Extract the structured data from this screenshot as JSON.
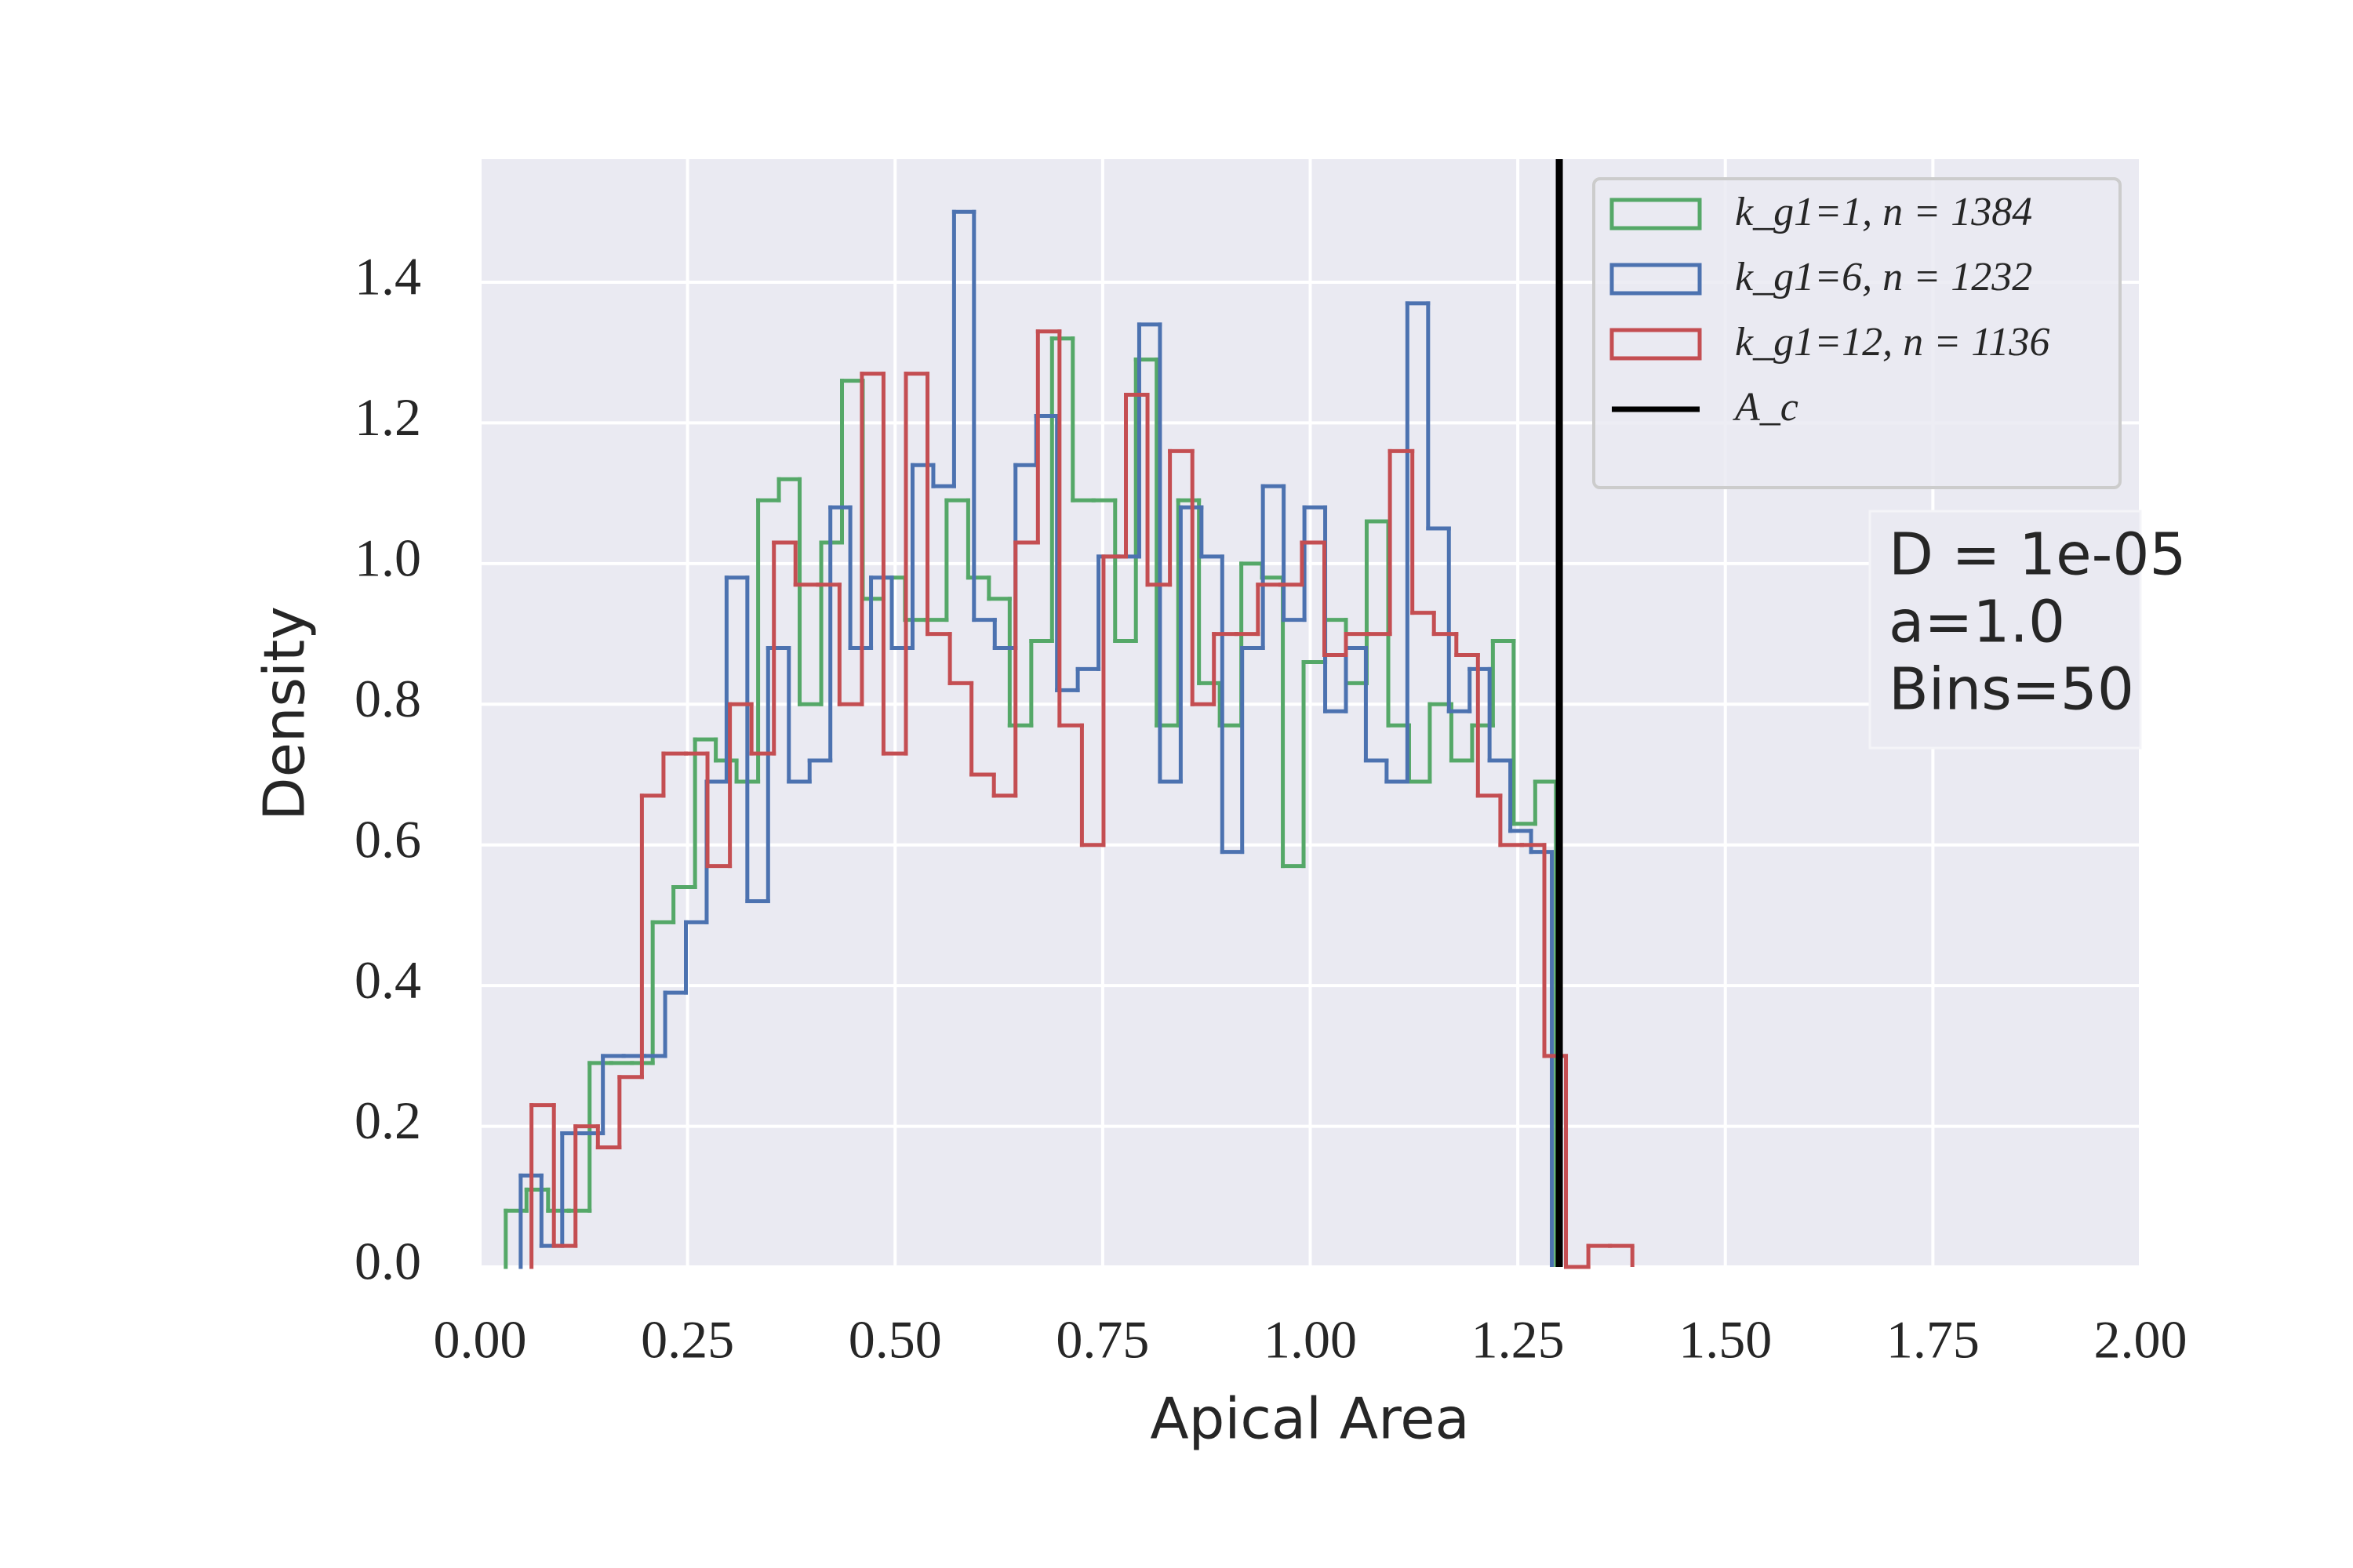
{
  "chart_data": {
    "type": "histogram",
    "histtype": "step",
    "xlabel": "Apical Area",
    "ylabel": "Density",
    "xlim": [
      0,
      2
    ],
    "ylim": [
      0,
      1.575
    ],
    "xticks": [
      {
        "value": 0,
        "label": "0.00"
      },
      0.25,
      {
        "value": 0.5,
        "label": "0.50"
      },
      0.75,
      {
        "value": 1,
        "label": "1.00"
      },
      1.25,
      {
        "value": 1.5,
        "label": "1.50"
      },
      1.75,
      {
        "value": 2,
        "label": "2.00"
      }
    ],
    "yticks": [
      {
        "value": 0,
        "label": "0.0"
      },
      0.2,
      0.4,
      0.6,
      0.8,
      {
        "value": 1,
        "label": "1.0"
      },
      1.2,
      1.4
    ],
    "grid": true,
    "legend_loc": "upper right",
    "series": [
      {
        "name": "k_g1=1, n = 1384",
        "color": "#55a868",
        "bins": [
          0.031,
          0.056,
          0.082,
          0.107,
          0.132,
          0.158,
          0.183,
          0.208,
          0.233,
          0.259,
          0.284,
          0.309,
          0.335,
          0.36,
          0.385,
          0.411,
          0.436,
          0.461,
          0.486,
          0.512,
          0.537,
          0.562,
          0.588,
          0.613,
          0.638,
          0.664,
          0.689,
          0.714,
          0.739,
          0.765,
          0.79,
          0.815,
          0.841,
          0.866,
          0.891,
          0.917,
          0.942,
          0.967,
          0.992,
          1.018,
          1.043,
          1.068,
          1.094,
          1.119,
          1.144,
          1.17,
          1.195,
          1.22,
          1.245,
          1.271,
          1.296
        ],
        "values": [
          0.08,
          0.11,
          0.08,
          0.08,
          0.29,
          0.29,
          0.29,
          0.49,
          0.54,
          0.75,
          0.72,
          0.69,
          1.09,
          1.12,
          0.8,
          1.03,
          1.26,
          0.95,
          0.98,
          0.92,
          0.92,
          1.09,
          0.98,
          0.95,
          0.77,
          0.89,
          1.32,
          1.09,
          1.09,
          0.89,
          1.29,
          0.77,
          1.09,
          0.83,
          0.77,
          1.0,
          0.98,
          0.57,
          0.86,
          0.92,
          0.83,
          1.06,
          0.77,
          0.69,
          0.8,
          0.72,
          0.77,
          0.89,
          0.63,
          0.69
        ]
      },
      {
        "name": "k_g1=6, n = 1232",
        "color": "#4c72b0",
        "bins": [
          0.049,
          0.074,
          0.099,
          0.124,
          0.148,
          0.173,
          0.198,
          0.223,
          0.248,
          0.273,
          0.297,
          0.322,
          0.347,
          0.372,
          0.397,
          0.422,
          0.446,
          0.471,
          0.496,
          0.521,
          0.546,
          0.571,
          0.595,
          0.62,
          0.645,
          0.67,
          0.695,
          0.72,
          0.745,
          0.769,
          0.794,
          0.819,
          0.844,
          0.869,
          0.894,
          0.918,
          0.943,
          0.968,
          0.993,
          1.018,
          1.043,
          1.067,
          1.092,
          1.117,
          1.142,
          1.167,
          1.192,
          1.216,
          1.241,
          1.266,
          1.291
        ],
        "values": [
          0.13,
          0.03,
          0.19,
          0.19,
          0.3,
          0.3,
          0.3,
          0.39,
          0.49,
          0.69,
          0.98,
          0.52,
          0.88,
          0.69,
          0.72,
          1.08,
          0.88,
          0.98,
          0.88,
          1.14,
          1.11,
          1.5,
          0.92,
          0.88,
          1.14,
          1.21,
          0.82,
          0.85,
          1.01,
          1.01,
          1.34,
          0.69,
          1.08,
          1.01,
          0.59,
          0.88,
          1.11,
          0.92,
          1.08,
          0.79,
          0.88,
          0.72,
          0.69,
          1.37,
          1.05,
          0.79,
          0.85,
          0.72,
          0.62,
          0.59
        ]
      },
      {
        "name": "k_g1=12, n = 1136",
        "color": "#c44e52",
        "bins": [
          0.062,
          0.089,
          0.115,
          0.142,
          0.168,
          0.195,
          0.221,
          0.248,
          0.274,
          0.301,
          0.327,
          0.354,
          0.38,
          0.407,
          0.433,
          0.46,
          0.486,
          0.513,
          0.539,
          0.566,
          0.592,
          0.619,
          0.645,
          0.672,
          0.698,
          0.725,
          0.751,
          0.778,
          0.804,
          0.831,
          0.858,
          0.884,
          0.911,
          0.937,
          0.964,
          0.99,
          1.017,
          1.043,
          1.07,
          1.096,
          1.123,
          1.149,
          1.176,
          1.202,
          1.229,
          1.255,
          1.282,
          1.308,
          1.335,
          1.361,
          1.388
        ],
        "values": [
          0.23,
          0.03,
          0.2,
          0.17,
          0.27,
          0.67,
          0.73,
          0.73,
          0.57,
          0.8,
          0.73,
          1.03,
          0.97,
          0.97,
          0.8,
          1.27,
          0.73,
          1.27,
          0.9,
          0.83,
          0.7,
          0.67,
          1.03,
          1.33,
          0.77,
          0.6,
          1.01,
          1.24,
          0.97,
          1.16,
          0.8,
          0.9,
          0.9,
          0.97,
          0.97,
          1.03,
          0.87,
          0.9,
          0.9,
          1.16,
          0.93,
          0.9,
          0.87,
          0.67,
          0.6,
          0.6,
          0.3,
          0,
          0.03,
          0.03
        ]
      }
    ],
    "vlines": [
      {
        "name": "A_c",
        "x": 1.3,
        "color": "#000000"
      }
    ],
    "annotations": [
      "D = 1e-05",
      "a=1.0",
      "Bins=50"
    ]
  }
}
